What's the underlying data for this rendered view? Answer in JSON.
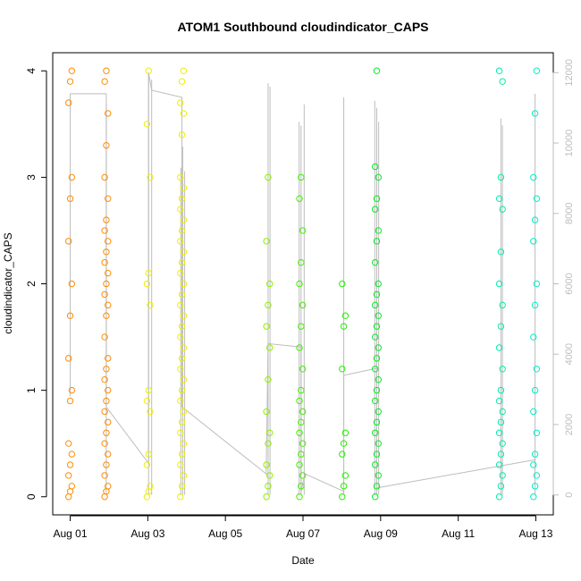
{
  "chart_data": {
    "type": "scatter",
    "title": "ATOM1 Southbound cloudindicator_CAPS",
    "xlabel": "Date",
    "ylabel": "cloudindicator_CAPS",
    "x_tick_labels": [
      "Aug 01",
      "Aug 03",
      "Aug 05",
      "Aug 07",
      "Aug 09",
      "Aug 11",
      "Aug 13"
    ],
    "x_ticks_days": [
      1,
      3,
      5,
      7,
      9,
      11,
      13
    ],
    "xlim_days": [
      0.55,
      13.45
    ],
    "ylim": [
      -0.17,
      4.17
    ],
    "y_ticks": [
      0,
      1,
      2,
      3,
      4
    ],
    "y2_ticks": [
      0,
      2000,
      4000,
      6000,
      8000,
      10000,
      12000
    ],
    "y2lim": [
      -566,
      12566
    ],
    "grid": false,
    "colors": {
      "day01": "#ff8c00",
      "day02": "#ff8c00",
      "day03": "#eeee00",
      "day04": "#eeee00",
      "day06": "#90ee00",
      "day07": "#44ee00",
      "day08": "#22ee00",
      "day09": "#00ee22",
      "day12": "#00eeaa",
      "day13": "#00eec8",
      "secondary_line": "#bdbdbd"
    },
    "points": [
      {
        "x": 1.0,
        "y": [
          0,
          0.05,
          0.1,
          0.2,
          0.3,
          0.4,
          0.5,
          0.9,
          1.0,
          1.3,
          1.7,
          2.0,
          2.4,
          2.8,
          3.0,
          3.7,
          3.9,
          4.0
        ],
        "color": "day01"
      },
      {
        "x": 1.93,
        "y": [
          0,
          0.05,
          0.1,
          0.2,
          0.3,
          0.4,
          0.5,
          0.6,
          0.7,
          0.8,
          0.9,
          1.0,
          1.1,
          1.2,
          1.3,
          1.5,
          1.7,
          1.8,
          1.9,
          2.0,
          2.1,
          2.2,
          2.3,
          2.4,
          2.5,
          2.6,
          2.8,
          3.0,
          3.3,
          3.6,
          3.9,
          4.0
        ],
        "color": "day02"
      },
      {
        "x": 3.02,
        "y": [
          0,
          0.05,
          0.1,
          0.3,
          0.4,
          0.8,
          0.9,
          1.0,
          1.8,
          2.0,
          2.1,
          3.0,
          3.5,
          4.0
        ],
        "color": "day03"
      },
      {
        "x": 3.88,
        "y": [
          0,
          0.1,
          0.2,
          0.3,
          0.4,
          0.5,
          0.6,
          0.7,
          0.8,
          0.9,
          1.0,
          1.1,
          1.2,
          1.3,
          1.4,
          1.5,
          1.6,
          1.7,
          1.8,
          1.9,
          2.0,
          2.1,
          2.2,
          2.3,
          2.4,
          2.5,
          2.6,
          2.7,
          2.8,
          2.9,
          3.0,
          3.4,
          3.6,
          3.7,
          3.9,
          4.0
        ],
        "color": "day04"
      },
      {
        "x": 6.1,
        "y": [
          0,
          0.1,
          0.2,
          0.3,
          0.5,
          0.6,
          0.8,
          1.1,
          1.4,
          1.6,
          1.8,
          2.0,
          2.4,
          3.0
        ],
        "color": "day06"
      },
      {
        "x": 6.95,
        "y": [
          0,
          0.1,
          0.2,
          0.3,
          0.4,
          0.5,
          0.6,
          0.7,
          0.8,
          0.9,
          1.0,
          1.2,
          1.4,
          1.6,
          1.8,
          2.0,
          2.2,
          2.5,
          2.8,
          3.0
        ],
        "color": "day07"
      },
      {
        "x": 8.05,
        "y": [
          0,
          0.1,
          0.2,
          0.4,
          0.5,
          0.6,
          1.2,
          1.6,
          1.7,
          2.0
        ],
        "color": "day08"
      },
      {
        "x": 8.9,
        "y": [
          0,
          0.1,
          0.2,
          0.3,
          0.4,
          0.5,
          0.6,
          0.7,
          0.8,
          0.9,
          1.0,
          1.1,
          1.2,
          1.3,
          1.4,
          1.5,
          1.6,
          1.7,
          1.8,
          1.9,
          2.0,
          2.2,
          2.4,
          2.5,
          2.7,
          2.8,
          3.0,
          3.1,
          4.0
        ],
        "color": "day09"
      },
      {
        "x": 12.1,
        "y": [
          0,
          0.1,
          0.2,
          0.3,
          0.4,
          0.5,
          0.6,
          0.7,
          0.8,
          0.9,
          1.0,
          1.2,
          1.4,
          1.6,
          1.8,
          2.0,
          2.3,
          2.7,
          2.8,
          3.0,
          3.9,
          4.0
        ],
        "color": "day12"
      },
      {
        "x": 12.98,
        "y": [
          0,
          0.1,
          0.2,
          0.3,
          0.4,
          0.6,
          0.8,
          1.0,
          1.2,
          1.5,
          1.8,
          2.0,
          2.4,
          2.6,
          2.8,
          3.0,
          3.6,
          4.0
        ],
        "color": "day13"
      }
    ]
  }
}
